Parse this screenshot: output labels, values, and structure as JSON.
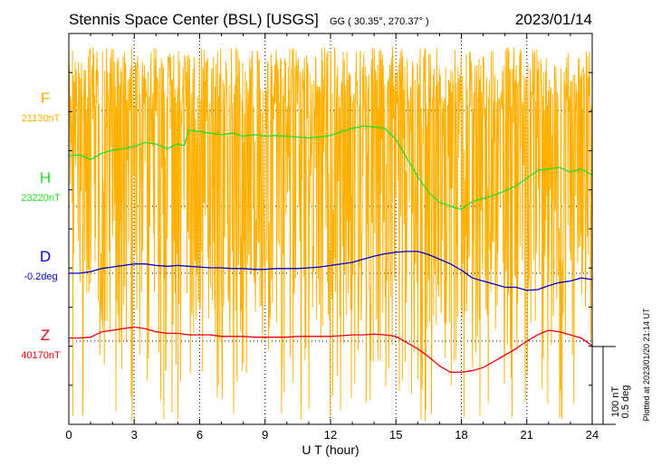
{
  "header": {
    "station": "Stennis Space Center (BSL)  [USGS]",
    "coords": "GG ( 30.35°, 270.37° )",
    "date": "2023/01/14"
  },
  "scale_bar": {
    "line1": "100 nT",
    "line2": "0.5 deg"
  },
  "footer_note": "Plotted at 2023/01/20 21:14 UT",
  "colors": {
    "F": "#ffb000",
    "H": "#22dd22",
    "D": "#0000cc",
    "Z": "#ee0000",
    "axis": "#000000"
  },
  "chart_data": {
    "type": "line",
    "title": "",
    "xlabel": "U T (hour)",
    "ylabel": "",
    "xlim": [
      0,
      24
    ],
    "x_ticks": [
      0,
      3,
      6,
      9,
      12,
      15,
      18,
      21,
      24
    ],
    "x_tick_labels": [
      "0",
      "3",
      "6",
      "9",
      "12",
      "15",
      "18",
      "21",
      "24"
    ],
    "grid": true,
    "scale_bar_nT": 100,
    "series": [
      {
        "name": "F",
        "baseline_label": "21130nT",
        "noisy": true,
        "note": "dense high-amplitude oscillation (spiky data) spanning most of the plot",
        "x": [
          0,
          24
        ],
        "y": [
          0,
          0
        ]
      },
      {
        "name": "H",
        "baseline_label": "23220nT",
        "x": [
          0.0,
          0.5,
          1.0,
          1.5,
          2.0,
          2.5,
          3.0,
          3.5,
          4.0,
          4.5,
          5.0,
          5.3,
          5.5,
          6.0,
          6.5,
          7.0,
          7.5,
          8.0,
          8.5,
          9.0,
          9.5,
          10.0,
          10.5,
          11.0,
          11.5,
          12.0,
          12.5,
          13.0,
          13.5,
          14.0,
          14.5,
          15.0,
          15.5,
          16.0,
          16.5,
          17.0,
          17.5,
          18.0,
          18.5,
          19.0,
          19.5,
          20.0,
          20.5,
          21.0,
          21.5,
          22.0,
          22.5,
          23.0,
          23.5,
          24.0
        ],
        "y": [
          65,
          66,
          60,
          68,
          72,
          74,
          77,
          82,
          80,
          74,
          80,
          78,
          98,
          96,
          94,
          92,
          94,
          90,
          92,
          90,
          91,
          90,
          89,
          88,
          89,
          91,
          96,
          100,
          103,
          102,
          100,
          86,
          62,
          38,
          18,
          5,
          0,
          -4,
          6,
          10,
          14,
          20,
          26,
          36,
          46,
          48,
          50,
          44,
          48,
          40
        ]
      },
      {
        "name": "D",
        "baseline_label": "-0.2deg",
        "x": [
          0.0,
          0.5,
          1.0,
          1.5,
          2.0,
          2.5,
          3.0,
          3.5,
          4.0,
          4.5,
          5.0,
          5.5,
          6.0,
          6.5,
          7.0,
          7.5,
          8.0,
          8.5,
          9.0,
          9.5,
          10.0,
          10.5,
          11.0,
          11.5,
          12.0,
          12.5,
          13.0,
          13.5,
          14.0,
          14.5,
          15.0,
          15.5,
          16.0,
          16.5,
          17.0,
          17.5,
          18.0,
          18.5,
          19.0,
          19.5,
          20.0,
          20.5,
          21.0,
          21.5,
          22.0,
          22.5,
          23.0,
          23.5,
          24.0
        ],
        "y": [
          0,
          0,
          2,
          6,
          8,
          10,
          12,
          12,
          10,
          9,
          10,
          9,
          8,
          7,
          7,
          6,
          6,
          5,
          5,
          6,
          6,
          6,
          7,
          8,
          10,
          12,
          14,
          18,
          22,
          25,
          27,
          28,
          28,
          24,
          18,
          12,
          4,
          -6,
          -10,
          -14,
          -18,
          -18,
          -22,
          -21,
          -16,
          -12,
          -10,
          -6,
          -8
        ]
      },
      {
        "name": "Z",
        "baseline_label": "40170nT",
        "x": [
          0.0,
          0.5,
          1.0,
          1.5,
          2.0,
          2.5,
          3.0,
          3.5,
          4.0,
          4.5,
          5.0,
          5.5,
          6.0,
          6.5,
          7.0,
          7.5,
          8.0,
          8.5,
          9.0,
          9.5,
          10.0,
          10.5,
          11.0,
          11.5,
          12.0,
          12.5,
          13.0,
          13.5,
          14.0,
          14.5,
          15.0,
          15.5,
          16.0,
          16.5,
          17.0,
          17.5,
          18.0,
          18.5,
          19.0,
          19.5,
          20.0,
          20.5,
          21.0,
          21.5,
          22.0,
          22.5,
          23.0,
          23.5,
          24.0
        ],
        "y": [
          4,
          4,
          5,
          12,
          14,
          16,
          18,
          16,
          12,
          10,
          10,
          8,
          8,
          8,
          6,
          6,
          6,
          5,
          5,
          5,
          5,
          6,
          6,
          6,
          6,
          7,
          8,
          8,
          9,
          8,
          6,
          -2,
          -10,
          -20,
          -32,
          -40,
          -40,
          -38,
          -34,
          -26,
          -18,
          -10,
          0,
          8,
          14,
          12,
          8,
          4,
          -6
        ]
      }
    ]
  }
}
